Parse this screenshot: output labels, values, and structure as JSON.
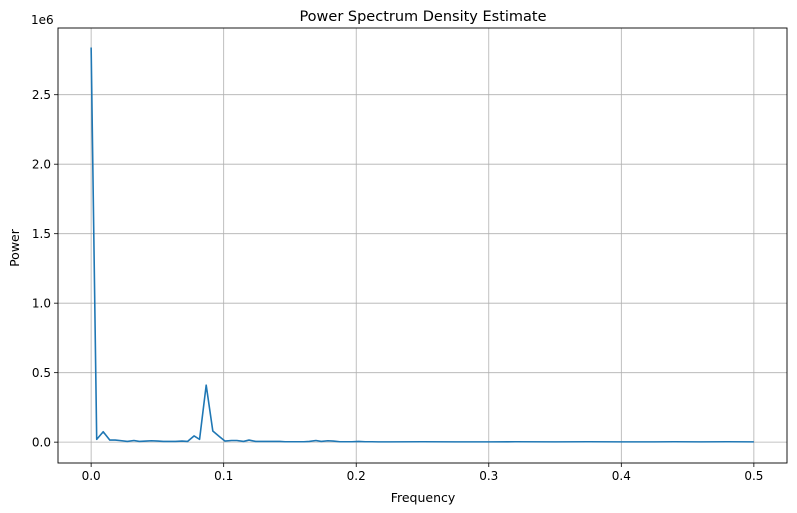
{
  "chart_data": {
    "type": "line",
    "title": "Power Spectrum Density Estimate",
    "xlabel": "Frequency",
    "ylabel": "Power",
    "y_multiplier_label": "1e6",
    "xlim": [
      -0.025,
      0.525
    ],
    "ylim": [
      -0.15,
      2.98
    ],
    "y_unit_scale": 1000000,
    "grid": true,
    "x_ticks": [
      0.0,
      0.1,
      0.2,
      0.3,
      0.4,
      0.5
    ],
    "x_tick_labels": [
      "0.0",
      "0.1",
      "0.2",
      "0.3",
      "0.4",
      "0.5"
    ],
    "y_ticks": [
      0.0,
      0.5,
      1.0,
      1.5,
      2.0,
      2.5
    ],
    "y_tick_labels": [
      "0.0",
      "0.5",
      "1.0",
      "1.5",
      "2.0",
      "2.5"
    ],
    "series": [
      {
        "color": "#1f77b4",
        "x": [
          0.0,
          0.0042,
          0.0091,
          0.0141,
          0.0182,
          0.0232,
          0.0273,
          0.0323,
          0.0364,
          0.0414,
          0.0455,
          0.0505,
          0.0545,
          0.0595,
          0.0636,
          0.0686,
          0.0727,
          0.0777,
          0.0818,
          0.0868,
          0.0918,
          0.0968,
          0.1009,
          0.1059,
          0.11,
          0.115,
          0.1191,
          0.1241,
          0.1282,
          0.1332,
          0.1373,
          0.1423,
          0.1464,
          0.1514,
          0.1555,
          0.1605,
          0.1646,
          0.1696,
          0.1736,
          0.1786,
          0.1827,
          0.1877,
          0.1918,
          0.1968,
          0.2018,
          0.2068,
          0.2118,
          0.2168,
          0.225,
          0.25,
          0.275,
          0.3,
          0.32,
          0.35,
          0.375,
          0.4,
          0.425,
          0.44,
          0.46,
          0.48,
          0.5
        ],
        "values": [
          2840000,
          20000,
          75000,
          15000,
          15000,
          10000,
          5000,
          12000,
          5000,
          8000,
          10000,
          8000,
          5000,
          5000,
          5000,
          8000,
          5000,
          45000,
          20000,
          410000,
          80000,
          40000,
          8000,
          12000,
          12000,
          5000,
          15000,
          5000,
          5000,
          5000,
          5000,
          5000,
          3000,
          3000,
          3000,
          3000,
          5000,
          12000,
          5000,
          10000,
          8000,
          3000,
          3000,
          3000,
          5000,
          3000,
          3000,
          2000,
          2000,
          3000,
          2000,
          2000,
          3000,
          2000,
          3000,
          2000,
          2000,
          3000,
          2000,
          3000,
          2000
        ]
      }
    ]
  }
}
